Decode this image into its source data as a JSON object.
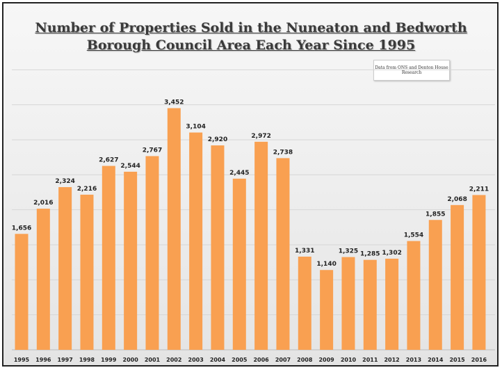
{
  "chart_data": {
    "type": "bar",
    "title": "Number of Properties Sold in the Nuneaton and Bedworth Borough Council Area Each Year Since 1995",
    "title_line1": "Number of Properties Sold in the Nuneaton and Bedworth",
    "title_line2": "Borough Council Area Each Year Since 1995",
    "annotation": "Data from ONS and Denton House Research",
    "categories": [
      "1995",
      "1996",
      "1997",
      "1998",
      "1999",
      "2000",
      "2001",
      "2002",
      "2003",
      "2004",
      "2005",
      "2006",
      "2007",
      "2008",
      "2009",
      "2010",
      "2011",
      "2012",
      "2013",
      "2014",
      "2015",
      "2016"
    ],
    "values": [
      1656,
      2016,
      2324,
      2216,
      2627,
      2544,
      2767,
      3452,
      3104,
      2920,
      2445,
      2972,
      2738,
      1331,
      1140,
      1325,
      1285,
      1302,
      1554,
      1855,
      2068,
      2211
    ],
    "data_labels": [
      "1,656",
      "2,016",
      "2,324",
      "2,216",
      "2,627",
      "2,544",
      "2,767",
      "3,452",
      "3,104",
      "2,920",
      "2,445",
      "2,972",
      "2,738",
      "1,331",
      "1,140",
      "1,325",
      "1,285",
      "1,302",
      "1,554",
      "1,855",
      "2,068",
      "2,211"
    ],
    "xlabel": "",
    "ylabel": "",
    "ylim": [
      0,
      4500
    ],
    "grid_step": 500,
    "grid": true,
    "legend": "none",
    "bar_color": "#f9a051"
  }
}
